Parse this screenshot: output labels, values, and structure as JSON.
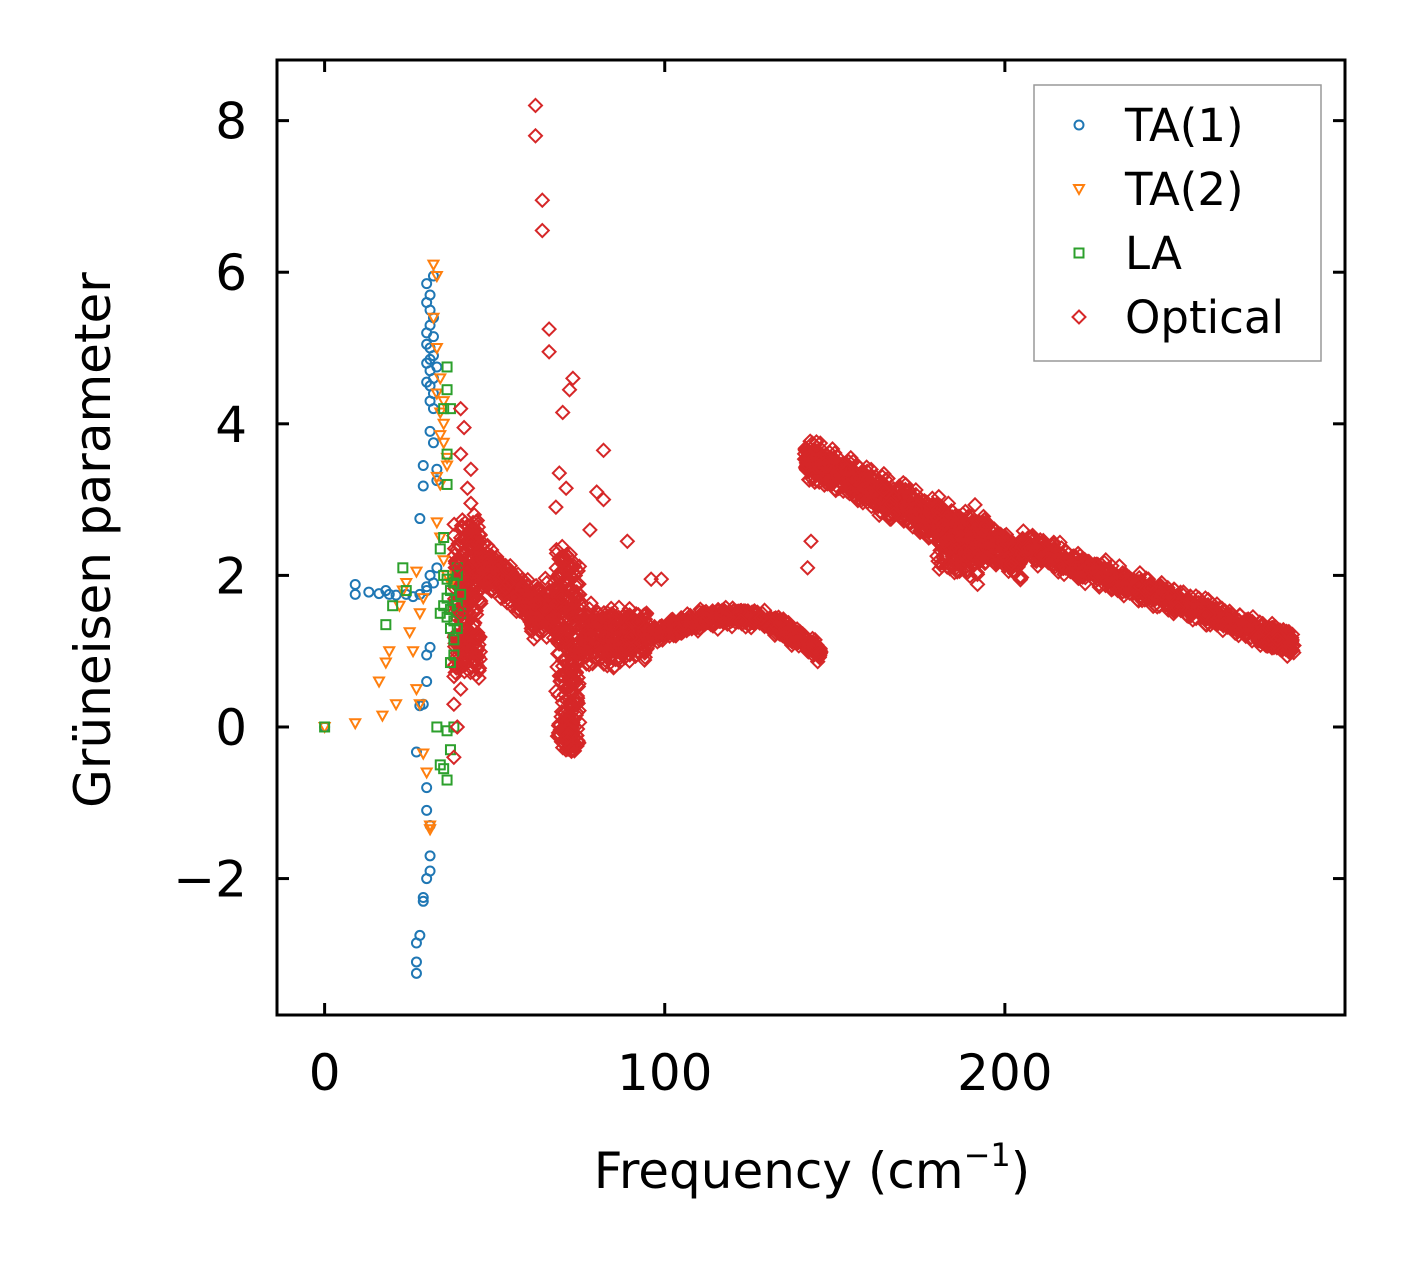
{
  "chart_data": {
    "type": "scatter",
    "title": "",
    "xlabel": "Frequency (cm",
    "xlabel_sup": "−1",
    "xlabel_close": ")",
    "ylabel": "Grüneisen parameter",
    "xlim": [
      -14,
      300
    ],
    "ylim": [
      -3.8,
      8.8
    ],
    "xticks": [
      0,
      100,
      200
    ],
    "xtick_labels": [
      "0",
      "100",
      "200"
    ],
    "yticks": [
      -2,
      0,
      2,
      4,
      6,
      8
    ],
    "ytick_labels": [
      "−2",
      "0",
      "2",
      "4",
      "6",
      "8"
    ],
    "grid": false,
    "legend_position": "top-right",
    "series": [
      {
        "name": "TA(1)",
        "marker": "circle",
        "color": "#1f77b4",
        "points": [
          [
            0,
            0
          ],
          [
            9,
            1.88
          ],
          [
            9,
            1.75
          ],
          [
            13,
            1.78
          ],
          [
            16,
            1.76
          ],
          [
            18,
            1.8
          ],
          [
            19,
            1.75
          ],
          [
            21,
            1.74
          ],
          [
            24,
            1.75
          ],
          [
            26,
            1.72
          ],
          [
            27,
            -0.33
          ],
          [
            28,
            2.75
          ],
          [
            28,
            0.28
          ],
          [
            29,
            0.3
          ],
          [
            29,
            3.45
          ],
          [
            29,
            3.18
          ],
          [
            30,
            0.6
          ],
          [
            30,
            0.95
          ],
          [
            30,
            -0.8
          ],
          [
            30,
            -1.1
          ],
          [
            31,
            -1.3
          ],
          [
            31,
            -1.7
          ],
          [
            31,
            -1.9
          ],
          [
            30,
            -2.0
          ],
          [
            29,
            -2.25
          ],
          [
            29,
            -2.3
          ],
          [
            28,
            -2.75
          ],
          [
            27,
            -2.85
          ],
          [
            27,
            -3.1
          ],
          [
            27,
            -3.25
          ],
          [
            28,
            1.75
          ],
          [
            30,
            1.8
          ],
          [
            30,
            5.85
          ],
          [
            31,
            5.7
          ],
          [
            32,
            5.95
          ],
          [
            31,
            5.5
          ],
          [
            32,
            5.4
          ],
          [
            30,
            5.2
          ],
          [
            31,
            5.0
          ],
          [
            32,
            4.9
          ],
          [
            30,
            4.8
          ],
          [
            31,
            4.7
          ],
          [
            32,
            4.6
          ],
          [
            31,
            4.5
          ],
          [
            32,
            4.4
          ],
          [
            31,
            4.3
          ],
          [
            32,
            4.2
          ],
          [
            31,
            3.9
          ],
          [
            32,
            3.75
          ],
          [
            33,
            3.4
          ],
          [
            33,
            3.25
          ],
          [
            30,
            5.6
          ],
          [
            31,
            5.3
          ],
          [
            30,
            5.05
          ],
          [
            32,
            5.15
          ],
          [
            31,
            4.85
          ],
          [
            33,
            4.75
          ],
          [
            30,
            4.55
          ],
          [
            33,
            2.1
          ],
          [
            31,
            2.0
          ],
          [
            32,
            1.9
          ],
          [
            30,
            1.85
          ],
          [
            31,
            1.05
          ]
        ]
      },
      {
        "name": "TA(2)",
        "marker": "triangle-down",
        "color": "#ff7f0e",
        "points": [
          [
            0,
            0
          ],
          [
            9,
            0.05
          ],
          [
            17,
            0.15
          ],
          [
            16,
            0.6
          ],
          [
            18,
            0.85
          ],
          [
            19,
            1.0
          ],
          [
            21,
            0.3
          ],
          [
            22,
            1.6
          ],
          [
            23,
            1.8
          ],
          [
            24,
            1.9
          ],
          [
            25,
            1.25
          ],
          [
            26,
            1.0
          ],
          [
            27,
            2.05
          ],
          [
            27,
            0.5
          ],
          [
            28,
            0.3
          ],
          [
            28,
            1.5
          ],
          [
            29,
            1.7
          ],
          [
            29,
            -0.35
          ],
          [
            30,
            -0.6
          ],
          [
            31,
            -1.3
          ],
          [
            31,
            -1.35
          ],
          [
            32,
            6.1
          ],
          [
            33,
            5.95
          ],
          [
            32,
            5.4
          ],
          [
            33,
            5.0
          ],
          [
            34,
            4.6
          ],
          [
            33,
            4.4
          ],
          [
            34,
            4.15
          ],
          [
            35,
            4.0
          ],
          [
            34,
            3.85
          ],
          [
            35,
            3.75
          ],
          [
            36,
            3.55
          ],
          [
            33,
            3.3
          ],
          [
            34,
            3.2
          ],
          [
            36,
            3.45
          ],
          [
            33,
            2.7
          ],
          [
            34,
            2.5
          ],
          [
            35,
            2.2
          ],
          [
            36,
            2.0
          ],
          [
            37,
            1.9
          ],
          [
            35,
            4.3
          ]
        ]
      },
      {
        "name": "LA",
        "marker": "square",
        "color": "#2ca02c",
        "points": [
          [
            0,
            0
          ],
          [
            18,
            1.35
          ],
          [
            20,
            1.6
          ],
          [
            23,
            2.1
          ],
          [
            24,
            1.8
          ],
          [
            33,
            0.0
          ],
          [
            34,
            -0.5
          ],
          [
            35,
            -0.55
          ],
          [
            36,
            -0.7
          ],
          [
            37,
            -0.3
          ],
          [
            38,
            0.0
          ],
          [
            36,
            -0.05
          ],
          [
            34,
            2.35
          ],
          [
            35,
            2.5
          ],
          [
            36,
            3.2
          ],
          [
            36,
            3.6
          ],
          [
            35,
            4.2
          ],
          [
            36,
            4.45
          ],
          [
            36,
            4.75
          ],
          [
            37,
            4.2
          ],
          [
            34,
            1.5
          ],
          [
            35,
            1.6
          ],
          [
            36,
            1.7
          ],
          [
            37,
            1.8
          ],
          [
            38,
            1.9
          ],
          [
            39,
            2.0
          ],
          [
            35,
            2.0
          ],
          [
            36,
            1.45
          ],
          [
            37,
            1.3
          ],
          [
            38,
            1.15
          ],
          [
            37,
            0.85
          ],
          [
            38,
            0.95
          ],
          [
            39,
            1.6
          ],
          [
            40,
            1.75
          ],
          [
            39,
            2.1
          ],
          [
            36,
            1.95
          ],
          [
            37,
            1.55
          ],
          [
            38,
            1.4
          ],
          [
            39,
            1.3
          ],
          [
            40,
            1.5
          ]
        ]
      },
      {
        "name": "Optical",
        "marker": "diamond",
        "color": "#d62728",
        "points": [
          [
            62,
            8.2
          ],
          [
            62,
            7.8
          ],
          [
            64,
            6.95
          ],
          [
            64,
            6.55
          ],
          [
            66,
            5.25
          ],
          [
            66,
            4.95
          ],
          [
            73,
            4.6
          ],
          [
            72,
            4.45
          ],
          [
            70,
            4.15
          ],
          [
            69,
            3.35
          ],
          [
            71,
            3.15
          ],
          [
            68,
            2.9
          ],
          [
            82,
            3.65
          ],
          [
            80,
            3.1
          ],
          [
            82,
            3.0
          ],
          [
            78,
            2.6
          ],
          [
            89,
            2.45
          ],
          [
            96,
            1.95
          ],
          [
            99,
            1.95
          ],
          [
            143,
            2.45
          ],
          [
            142,
            2.1
          ],
          [
            40,
            4.2
          ],
          [
            41,
            3.95
          ],
          [
            40,
            3.6
          ],
          [
            43,
            3.4
          ],
          [
            42,
            3.15
          ],
          [
            43,
            2.95
          ],
          [
            44,
            2.8
          ],
          [
            39,
            2.1
          ],
          [
            40,
            1.5
          ],
          [
            41,
            0.9
          ],
          [
            40,
            0.5
          ],
          [
            38,
            0.3
          ],
          [
            39,
            0.0
          ],
          [
            38,
            -0.4
          ]
        ]
      }
    ]
  }
}
